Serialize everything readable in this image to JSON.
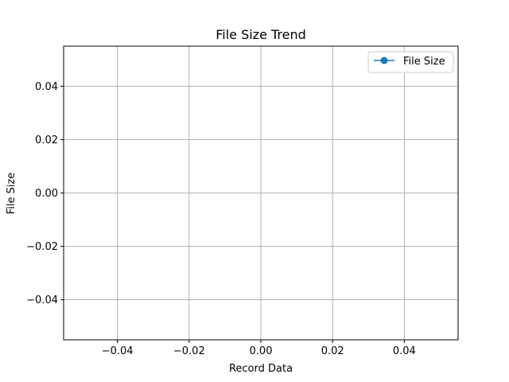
{
  "chart_data": {
    "type": "line",
    "title": "File Size Trend",
    "xlabel": "Record Data",
    "ylabel": "File Size",
    "xlim": [
      -0.055,
      0.055
    ],
    "ylim": [
      -0.055,
      0.055
    ],
    "xticks": [
      -0.04,
      -0.02,
      0.0,
      0.02,
      0.04
    ],
    "xtick_labels": [
      "−0.04",
      "−0.02",
      "0.00",
      "0.02",
      "0.04"
    ],
    "yticks": [
      -0.04,
      -0.02,
      0.0,
      0.02,
      0.04
    ],
    "ytick_labels": [
      "−0.04",
      "−0.02",
      "0.00",
      "0.02",
      "0.04"
    ],
    "grid": true,
    "legend_position": "top-right",
    "series": [
      {
        "name": "File Size",
        "x": [],
        "y": [],
        "color": "#1f77b4",
        "marker": "circle"
      }
    ]
  }
}
